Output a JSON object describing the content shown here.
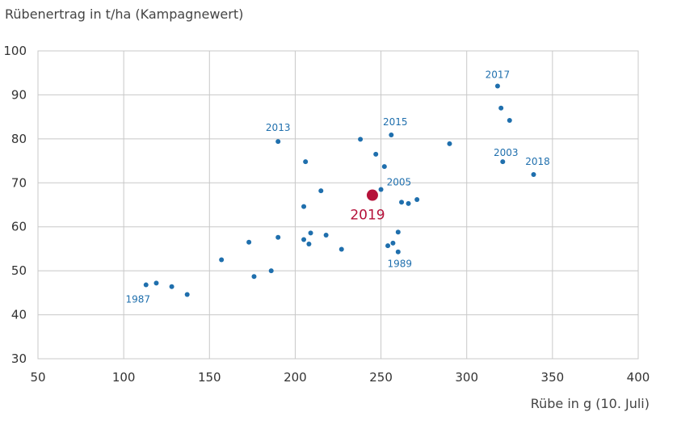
{
  "chart_data": {
    "type": "scatter",
    "title": "",
    "xlabel": "Rübe in g (10. Juli)",
    "ylabel": "Rübenertrag in t/ha (Kampagnewert)",
    "xlim": [
      50,
      400
    ],
    "ylim": [
      30,
      100
    ],
    "xticks": [
      50,
      100,
      150,
      200,
      250,
      300,
      350,
      400
    ],
    "yticks": [
      30,
      40,
      50,
      60,
      70,
      80,
      90,
      100
    ],
    "grid": true,
    "point_color": "#1f6fad",
    "label_color": "#1f6fad",
    "highlight_color": "#b5123a",
    "points": [
      {
        "x": 113,
        "y": 46.8,
        "label": "1987"
      },
      {
        "x": 119,
        "y": 47.2
      },
      {
        "x": 128,
        "y": 46.4
      },
      {
        "x": 137,
        "y": 44.6
      },
      {
        "x": 157,
        "y": 52.5
      },
      {
        "x": 173,
        "y": 56.5
      },
      {
        "x": 176,
        "y": 48.7
      },
      {
        "x": 186,
        "y": 50.0
      },
      {
        "x": 190,
        "y": 57.6
      },
      {
        "x": 190,
        "y": 79.4,
        "label": "2013"
      },
      {
        "x": 205,
        "y": 57.1
      },
      {
        "x": 205,
        "y": 64.6
      },
      {
        "x": 206,
        "y": 74.8
      },
      {
        "x": 208,
        "y": 56.1
      },
      {
        "x": 209,
        "y": 58.6
      },
      {
        "x": 215,
        "y": 68.2
      },
      {
        "x": 218,
        "y": 58.1
      },
      {
        "x": 227,
        "y": 54.9
      },
      {
        "x": 238,
        "y": 79.9
      },
      {
        "x": 247,
        "y": 76.5
      },
      {
        "x": 250,
        "y": 68.5,
        "label": "2005"
      },
      {
        "x": 252,
        "y": 73.7
      },
      {
        "x": 254,
        "y": 55.7
      },
      {
        "x": 256,
        "y": 80.9,
        "label": "2015"
      },
      {
        "x": 257,
        "y": 56.3
      },
      {
        "x": 260,
        "y": 58.8
      },
      {
        "x": 260,
        "y": 54.3,
        "label": "1989"
      },
      {
        "x": 262,
        "y": 65.6
      },
      {
        "x": 266,
        "y": 65.3
      },
      {
        "x": 271,
        "y": 66.2
      },
      {
        "x": 290,
        "y": 78.9
      },
      {
        "x": 318,
        "y": 92.0,
        "label": "2017"
      },
      {
        "x": 320,
        "y": 87.0
      },
      {
        "x": 321,
        "y": 74.8,
        "label": "2003"
      },
      {
        "x": 325,
        "y": 84.2
      },
      {
        "x": 339,
        "y": 71.9,
        "label": "2018"
      }
    ],
    "highlight": {
      "x": 245,
      "y": 67.2,
      "label": "2019"
    }
  }
}
